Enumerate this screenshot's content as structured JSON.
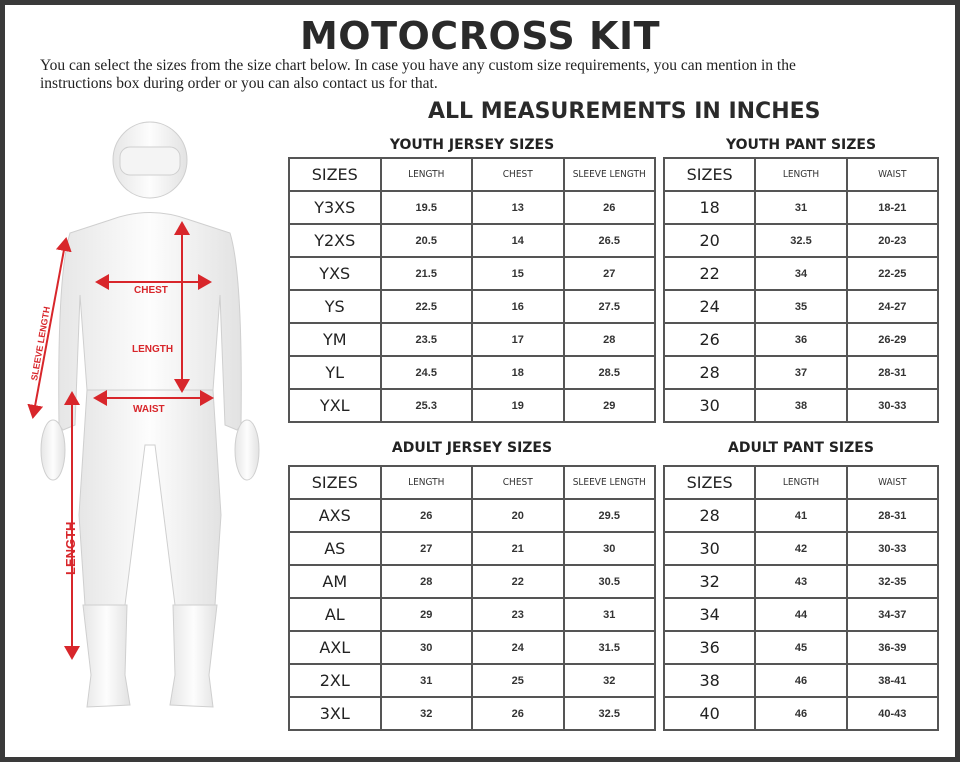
{
  "title": "MOTOCROSS KIT",
  "intro": "You can select the sizes from the size chart below. In case you have any custom size requirements, you can mention in the instructions box during order or you can also contact us for that.",
  "units_note": "ALL MEASUREMENTS IN INCHES",
  "figure": {
    "labels": {
      "chest": "CHEST",
      "length": "LENGTH",
      "waist": "WAIST",
      "sleeve": "SLEEVE LENGTH",
      "pant_length": "LENGTH"
    },
    "arrow_color": "#d8262b"
  },
  "tables": {
    "youth_jersey": {
      "title": "YOUTH JERSEY SIZES",
      "headers": [
        "SIZES",
        "LENGTH",
        "CHEST",
        "SLEEVE LENGTH"
      ],
      "rows": [
        [
          "Y3XS",
          "19.5",
          "13",
          "26"
        ],
        [
          "Y2XS",
          "20.5",
          "14",
          "26.5"
        ],
        [
          "YXS",
          "21.5",
          "15",
          "27"
        ],
        [
          "YS",
          "22.5",
          "16",
          "27.5"
        ],
        [
          "YM",
          "23.5",
          "17",
          "28"
        ],
        [
          "YL",
          "24.5",
          "18",
          "28.5"
        ],
        [
          "YXL",
          "25.3",
          "19",
          "29"
        ]
      ]
    },
    "youth_pant": {
      "title": "YOUTH PANT SIZES",
      "headers": [
        "SIZES",
        "LENGTH",
        "WAIST"
      ],
      "rows": [
        [
          "18",
          "31",
          "18-21"
        ],
        [
          "20",
          "32.5",
          "20-23"
        ],
        [
          "22",
          "34",
          "22-25"
        ],
        [
          "24",
          "35",
          "24-27"
        ],
        [
          "26",
          "36",
          "26-29"
        ],
        [
          "28",
          "37",
          "28-31"
        ],
        [
          "30",
          "38",
          "30-33"
        ]
      ]
    },
    "adult_jersey": {
      "title": "ADULT JERSEY SIZES",
      "headers": [
        "SIZES",
        "LENGTH",
        "CHEST",
        "SLEEVE LENGTH"
      ],
      "rows": [
        [
          "AXS",
          "26",
          "20",
          "29.5"
        ],
        [
          "AS",
          "27",
          "21",
          "30"
        ],
        [
          "AM",
          "28",
          "22",
          "30.5"
        ],
        [
          "AL",
          "29",
          "23",
          "31"
        ],
        [
          "AXL",
          "30",
          "24",
          "31.5"
        ],
        [
          "2XL",
          "31",
          "25",
          "32"
        ],
        [
          "3XL",
          "32",
          "26",
          "32.5"
        ]
      ]
    },
    "adult_pant": {
      "title": "ADULT PANT SIZES",
      "headers": [
        "SIZES",
        "LENGTH",
        "WAIST"
      ],
      "rows": [
        [
          "28",
          "41",
          "28-31"
        ],
        [
          "30",
          "42",
          "30-33"
        ],
        [
          "32",
          "43",
          "32-35"
        ],
        [
          "34",
          "44",
          "34-37"
        ],
        [
          "36",
          "45",
          "36-39"
        ],
        [
          "38",
          "46",
          "38-41"
        ],
        [
          "40",
          "46",
          "40-43"
        ]
      ]
    }
  }
}
